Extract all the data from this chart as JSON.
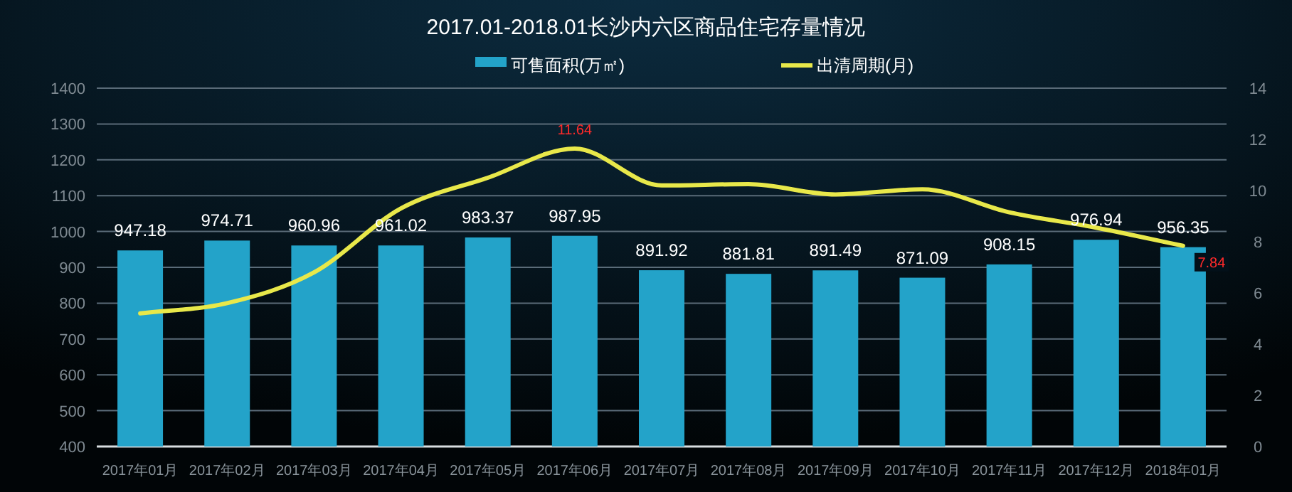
{
  "chart_data": {
    "type": "bar",
    "title": "2017.01-2018.01长沙内六区商品住宅存量情况",
    "categories": [
      "2017年01月",
      "2017年02月",
      "2017年03月",
      "2017年04月",
      "2017年05月",
      "2017年06月",
      "2017年07月",
      "2017年08月",
      "2017年09月",
      "2017年10月",
      "2017年11月",
      "2017年12月",
      "2018年01月"
    ],
    "series": [
      {
        "name": "可售面积(万㎡)",
        "color": "#23a3c9",
        "values": [
          947.18,
          974.71,
          960.96,
          961.02,
          983.37,
          987.95,
          891.92,
          881.81,
          891.49,
          871.09,
          908.15,
          976.94,
          956.35
        ],
        "value_labels": [
          "947.18",
          "974.71",
          "960.96",
          "961.02",
          "983.37",
          "987.95",
          "891.92",
          "881.81",
          "891.49",
          "871.09",
          "908.15",
          "976.94",
          "956.35"
        ]
      },
      {
        "name": "出清周期(月)",
        "type": "line",
        "axis": "y2",
        "color": "#e8e84a",
        "values": [
          5.2,
          5.6,
          6.8,
          9.3,
          10.5,
          11.64,
          10.2,
          10.25,
          9.85,
          10.05,
          9.15,
          8.55,
          7.84
        ],
        "value_labels": [
          null,
          null,
          null,
          null,
          null,
          "11.64",
          null,
          null,
          null,
          null,
          null,
          null,
          "7.84"
        ]
      }
    ],
    "ylim": [
      400,
      1400
    ],
    "yticks": [
      400,
      500,
      600,
      700,
      800,
      900,
      1000,
      1100,
      1200,
      1300,
      1400
    ],
    "y2lim": [
      0,
      14
    ],
    "y2ticks": [
      0,
      2,
      4,
      6,
      8,
      10,
      12,
      14
    ],
    "grid": "y",
    "legend": "top",
    "marker": "none",
    "line_style": "solid"
  }
}
